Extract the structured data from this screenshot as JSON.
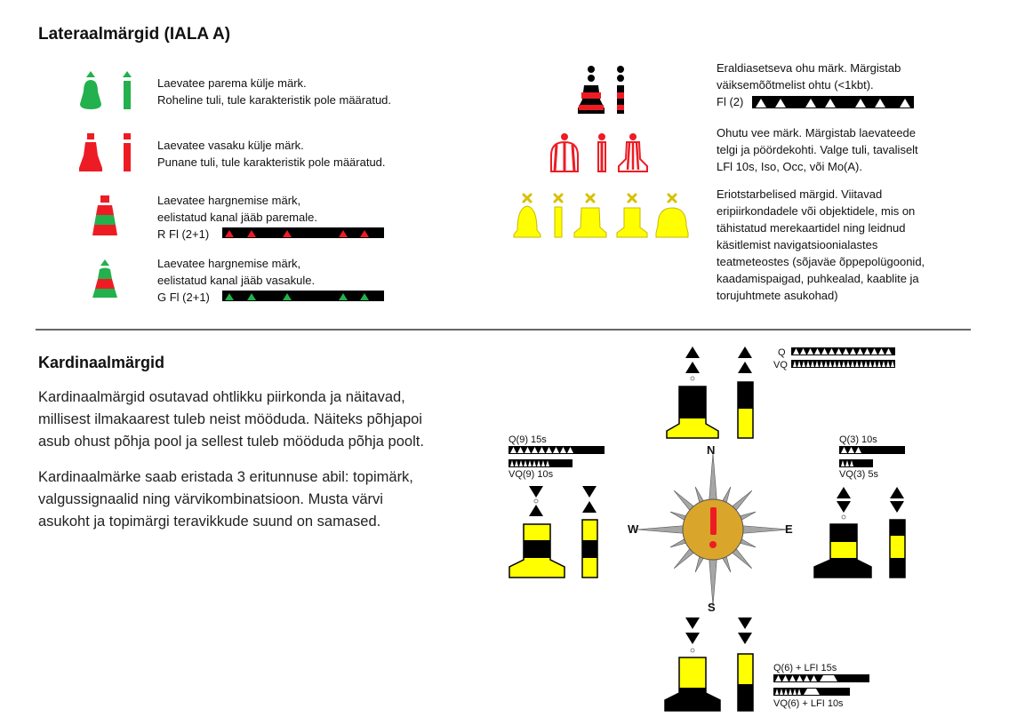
{
  "lateral": {
    "title": "Lateraalmärgid (IALA A)",
    "items": [
      {
        "line1": "Laevatee parema külje märk.",
        "line2": "Roheline tuli, tule karakteristik pole määratud.",
        "line3": ""
      },
      {
        "line1": "Laevatee vasaku külje märk.",
        "line2": "Punane tuli, tule karakteristik pole määratud.",
        "line3": ""
      },
      {
        "line1": "Laevatee hargnemise märk,",
        "line2": "eelistatud kanal jääb paremale.",
        "line3": "R Fl (2+1)"
      },
      {
        "line1": "Laevatee hargnemise märk,",
        "line2": "eelistatud kanal jääb vasakule.",
        "line3": "G Fl (2+1)"
      }
    ],
    "right": [
      {
        "lines": [
          "Eraldiasetseva ohu märk. Märgistab",
          "väiksemõõtmelist ohtu (<1kbt)."
        ],
        "code": "Fl (2)"
      },
      {
        "lines": [
          "Ohutu vee märk. Märgistab laevateede",
          "telgi ja pöördekohti.  Valge tuli, tavaliselt",
          "LFl 10s,  Iso, Occ, või Mo(A)."
        ]
      },
      {
        "lines": [
          "Eriotstarbelised märgid. Viitavad",
          "eripiirkondadele või objektidele, mis on",
          "tähistatud merekaartidel ning leidnud",
          "käsitlemist navigatsioonialastes",
          "teatmeteostes (sõjaväe õppepolügoonid,",
          "kaadamispaigad, puhkealad, kaablite ja",
          "torujuhtmete asukohad)"
        ]
      }
    ]
  },
  "cardinal": {
    "title": "Kardinaalmärgid",
    "para1": [
      "Kardinaalmärgid osutavad ohtlikku piirkonda ja näitavad,",
      "millisest ilmakaarest tuleb neist mööduda. Näiteks põhjapoi",
      "asub ohust põhja pool ja sellest tuleb mööduda põhja poolt."
    ],
    "para2": [
      "Kardinaalmärke saab eristada 3 eritunnuse abil: topimärk,",
      "valgussignaalid ning värvikombinatsioon. Musta värvi",
      "asukoht ja topimärgi teravikkude suund on samased."
    ],
    "north": {
      "q": "Q",
      "vq": "VQ"
    },
    "west": {
      "q": "Q(9)  15s",
      "vq": "VQ(9)  10s"
    },
    "east": {
      "q": "Q(3)  10s",
      "vq": "VQ(3)  5s"
    },
    "south": {
      "q": "Q(6) + LFI  15s",
      "vq": "VQ(6) + LFI  10s"
    },
    "compass": {
      "n": "N",
      "s": "S",
      "e": "E",
      "w": "W",
      "center": "!"
    }
  },
  "colors": {
    "green": "#22b14c",
    "red": "#ed1c24",
    "yellow": "#ffff00",
    "black": "#000000",
    "compass_center": "#d9a52b",
    "compass_ray": "#a6a6a6"
  }
}
